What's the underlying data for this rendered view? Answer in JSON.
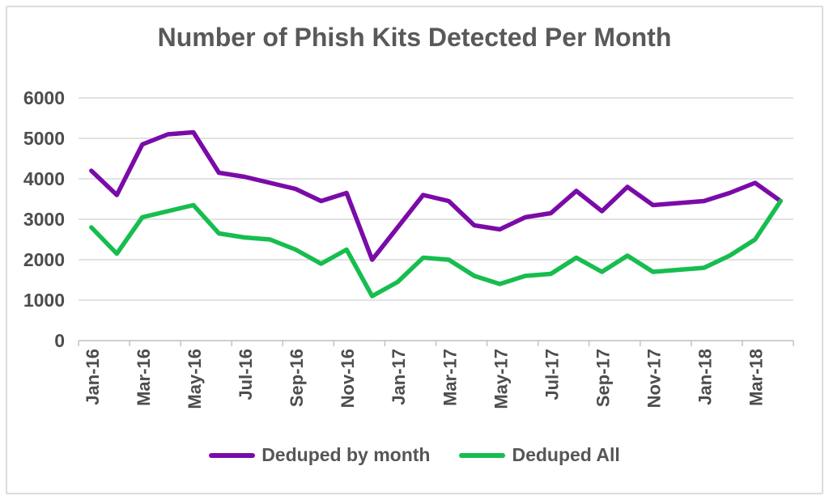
{
  "chart_data": {
    "type": "line",
    "title": "Number of Phish Kits Detected Per Month",
    "categories": [
      "Jan-16",
      "Feb-16",
      "Mar-16",
      "Apr-16",
      "May-16",
      "Jun-16",
      "Jul-16",
      "Aug-16",
      "Sep-16",
      "Oct-16",
      "Nov-16",
      "Dec-16",
      "Jan-17",
      "Feb-17",
      "Mar-17",
      "Apr-17",
      "May-17",
      "Jun-17",
      "Jul-17",
      "Aug-17",
      "Sep-17",
      "Oct-17",
      "Nov-17",
      "Dec-17",
      "Jan-18",
      "Feb-18",
      "Mar-18",
      "Apr-18"
    ],
    "x_label_every": 2,
    "y_ticks": [
      0,
      1000,
      2000,
      3000,
      4000,
      5000,
      6000
    ],
    "ylim": [
      0,
      6000
    ],
    "grid": true,
    "legend_position": "bottom",
    "series": [
      {
        "name": "Deduped by month",
        "color": "#7A0BA8",
        "values": [
          4200,
          3600,
          4850,
          5100,
          5150,
          4150,
          4050,
          3900,
          3750,
          3450,
          3650,
          2000,
          2800,
          3600,
          3450,
          2850,
          2750,
          3050,
          3150,
          3700,
          3200,
          3800,
          3350,
          3400,
          3450,
          3650,
          3900,
          3450
        ]
      },
      {
        "name": "Deduped All",
        "color": "#17BD4F",
        "values": [
          2800,
          2150,
          3050,
          3200,
          3350,
          2650,
          2550,
          2500,
          2250,
          1900,
          2250,
          1100,
          1450,
          2050,
          2000,
          1600,
          1400,
          1600,
          1650,
          2050,
          1700,
          2100,
          1700,
          1750,
          1800,
          2100,
          2500,
          3450
        ]
      }
    ]
  },
  "style": {
    "gridline_color": "#d9d9d9",
    "axis_color": "#bfbfbf",
    "label_color": "#4d4d4d"
  }
}
